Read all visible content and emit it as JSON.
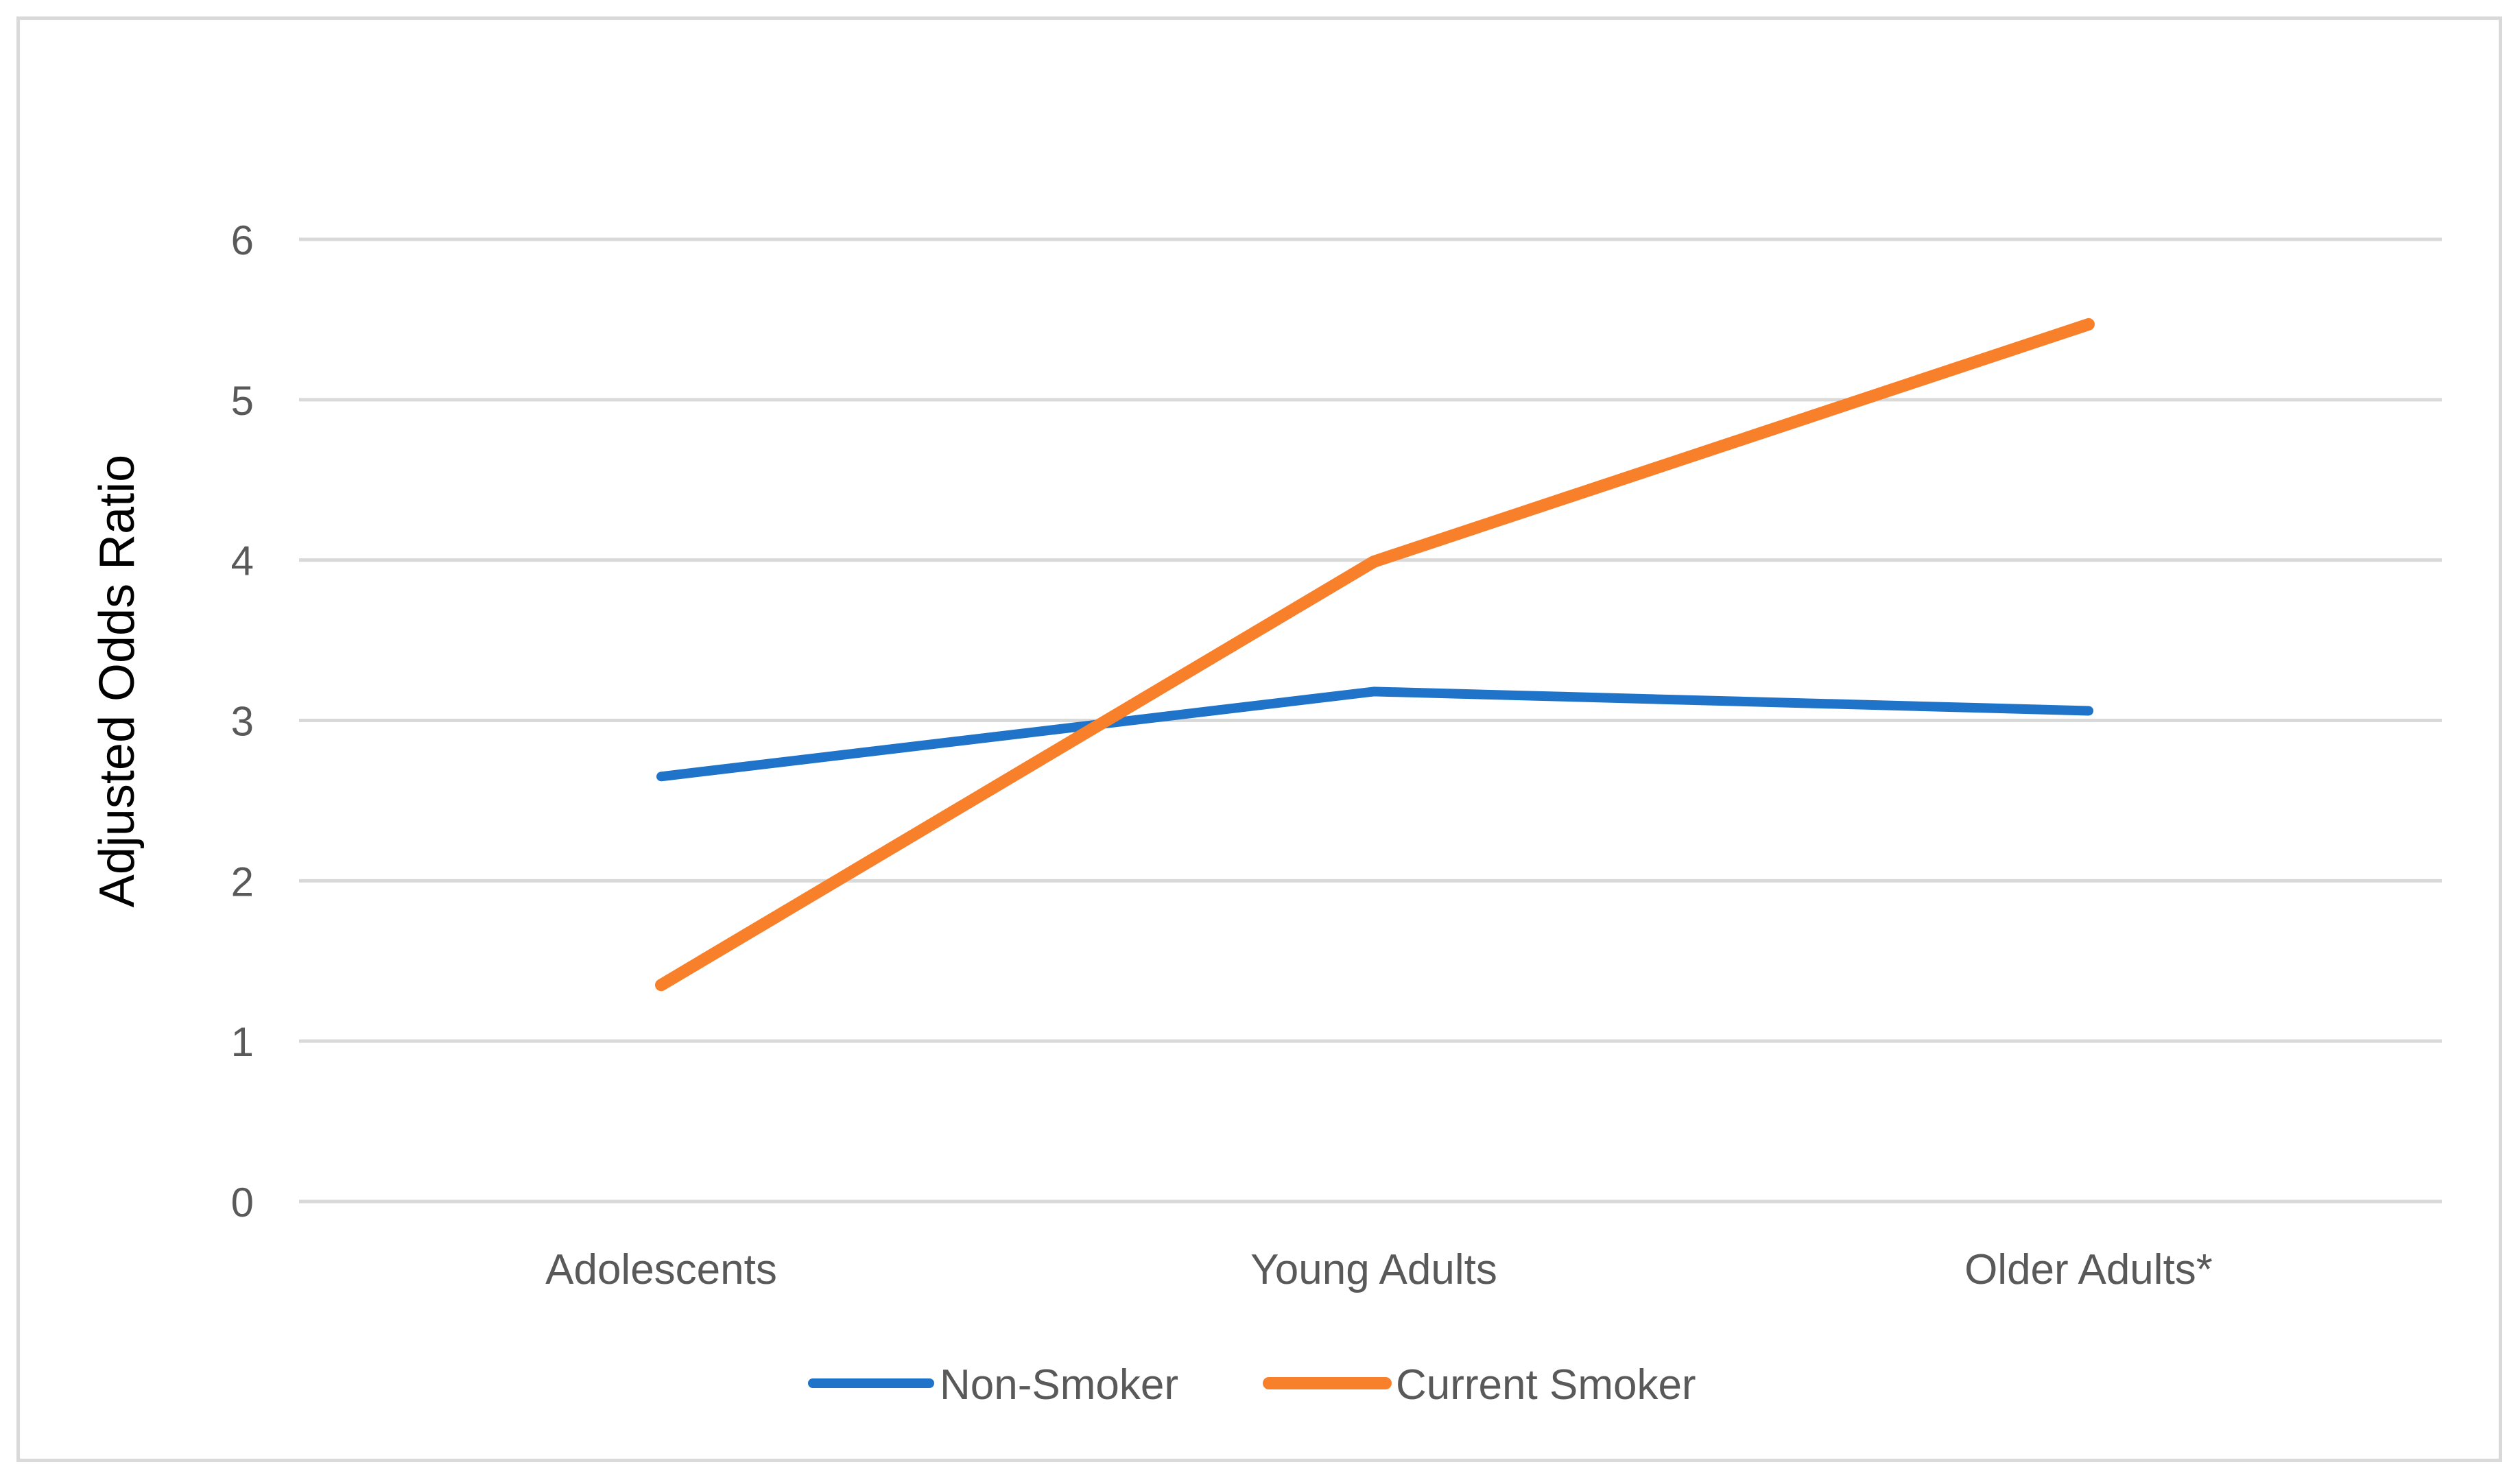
{
  "chart_data": {
    "type": "line",
    "title": "",
    "xlabel": "",
    "ylabel": "Adjusted Odds Ratio",
    "categories": [
      "Adolescents",
      "Young Adults",
      "Older Adults*"
    ],
    "series": [
      {
        "name": "Non-Smoker",
        "values": [
          2.65,
          3.18,
          3.06
        ],
        "color": "#1f73c8"
      },
      {
        "name": "Current Smoker",
        "values": [
          1.35,
          3.99,
          5.47
        ],
        "color": "#f8802a"
      }
    ],
    "ylim": [
      0,
      6
    ],
    "yticks": [
      0,
      1,
      2,
      3,
      4,
      5,
      6
    ],
    "grid": true,
    "legend": "bottom",
    "colors": {
      "gridline": "#d9d9d9",
      "tick_text": "#595959",
      "frame": "#d9d9d9"
    }
  }
}
